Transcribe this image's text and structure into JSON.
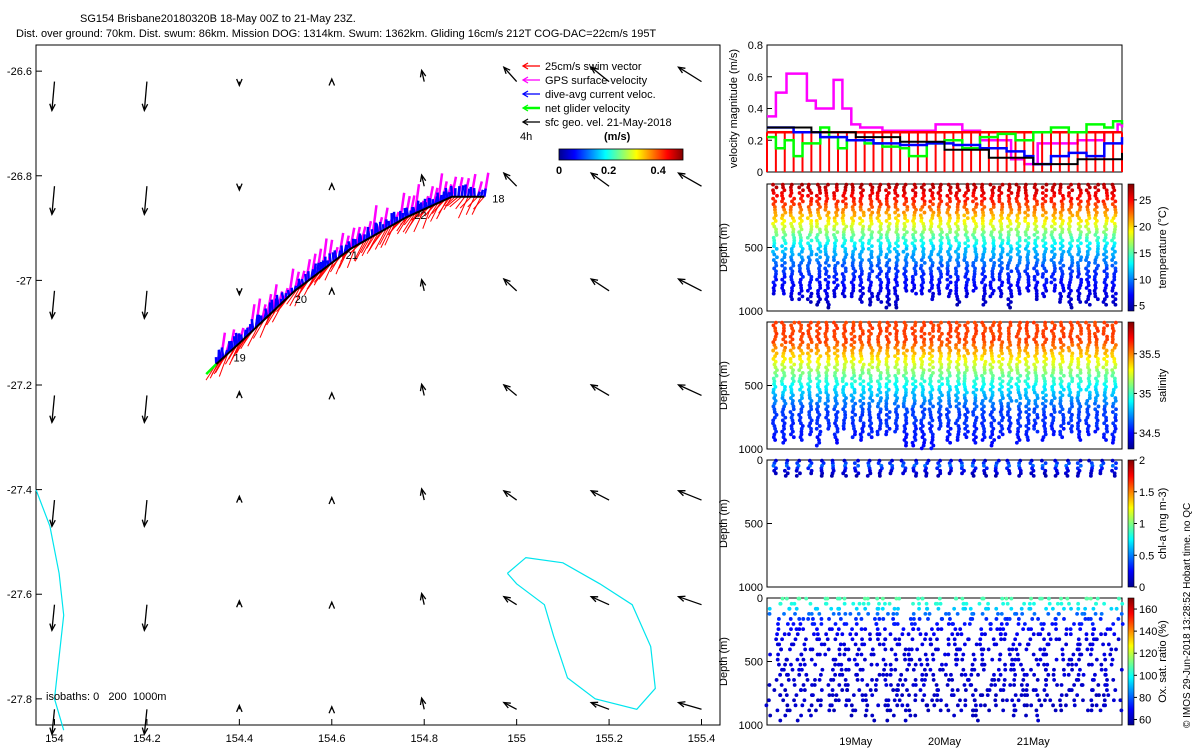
{
  "header": {
    "title": "SG154 Brisbane20180320B 18-May 00Z to 21-May 23Z.",
    "subtitle": "Dist. over ground: 70km. Dist. swum: 86km. Mission DOG: 1314km. Swum: 1362km. Gliding 16cm/s 212T COG-DAC=22cm/s 195T"
  },
  "chart_data": [
    {
      "id": "map",
      "type": "scatter",
      "title": "SG154 Brisbane20180320B 18-May 00Z to 21-May 23Z.",
      "x_ticks": [
        "154",
        "154.2",
        "154.4",
        "154.6",
        "154.8",
        "155",
        "155.2",
        "155.4"
      ],
      "y_ticks": [
        "-26.6",
        "-26.8",
        "-27",
        "-27.2",
        "-27.4",
        "-27.6",
        "-27.8"
      ],
      "xlim": [
        153.96,
        155.44
      ],
      "ylim": [
        -27.85,
        -26.55
      ],
      "legend": [
        {
          "label": "25cm/s swim vector",
          "color": "#ff0000"
        },
        {
          "label": "GPS surface velocity",
          "color": "#ff00ff"
        },
        {
          "label": "dive-avg current veloc.",
          "color": "#0000ff"
        },
        {
          "label": "net glider velocity",
          "color": "#00ff00"
        },
        {
          "label": "sfc geo. vel. 21-May-2018",
          "color": "#000000"
        }
      ],
      "legend_placement": "top-right",
      "colorbar": {
        "label": "(m/s)",
        "ticks": [
          "0",
          "0.2",
          "0.4"
        ],
        "range": [
          0,
          0.5
        ],
        "timestep_label": "4h"
      },
      "isobaths_label": "isobaths: 0   200  1000m",
      "track_labels": [
        "18",
        "19",
        "20",
        "21",
        "22"
      ],
      "track": [
        [
          154.35,
          -27.16
        ],
        [
          154.4,
          -27.12
        ],
        [
          154.46,
          -27.07
        ],
        [
          154.52,
          -27.02
        ],
        [
          154.58,
          -26.98
        ],
        [
          154.64,
          -26.94
        ],
        [
          154.7,
          -26.91
        ],
        [
          154.76,
          -26.88
        ],
        [
          154.81,
          -26.86
        ],
        [
          154.86,
          -26.84
        ],
        [
          154.93,
          -26.84
        ]
      ],
      "isobath_west": [
        [
          153.96,
          -27.4
        ],
        [
          153.99,
          -27.47
        ],
        [
          154.01,
          -27.56
        ],
        [
          154.02,
          -27.64
        ],
        [
          154.01,
          -27.72
        ],
        [
          154.0,
          -27.8
        ],
        [
          154.02,
          -27.86
        ]
      ],
      "isobath_east": [
        [
          154.98,
          -27.56
        ],
        [
          155.02,
          -27.53
        ],
        [
          155.1,
          -27.54
        ],
        [
          155.18,
          -27.58
        ],
        [
          155.25,
          -27.62
        ],
        [
          155.29,
          -27.7
        ],
        [
          155.3,
          -27.78
        ],
        [
          155.26,
          -27.82
        ],
        [
          155.17,
          -27.8
        ],
        [
          155.11,
          -27.76
        ],
        [
          155.08,
          -27.68
        ],
        [
          155.06,
          -27.62
        ],
        [
          155.0,
          -27.58
        ],
        [
          154.98,
          -27.56
        ]
      ]
    },
    {
      "id": "velocity",
      "type": "line",
      "ylabel": "velocity magnitude (m/s)",
      "ylim": [
        0,
        0.8
      ],
      "y_ticks": [
        "0",
        "0.2",
        "0.4",
        "0.6",
        "0.8"
      ],
      "time_range": [
        18.0,
        22.0
      ],
      "series": [
        {
          "color": "#ff00ff",
          "x": [
            18.0,
            18.1,
            18.22,
            18.35,
            18.45,
            18.55,
            18.65,
            18.75,
            18.85,
            18.95,
            19.05,
            19.3,
            19.8,
            19.9,
            20.2,
            20.4,
            20.6,
            20.75,
            20.9,
            21.05,
            21.5,
            21.8,
            21.95,
            22.0
          ],
          "y": [
            0.35,
            0.5,
            0.62,
            0.62,
            0.45,
            0.4,
            0.4,
            0.58,
            0.4,
            0.3,
            0.28,
            0.26,
            0.26,
            0.3,
            0.26,
            0.2,
            0.2,
            0.08,
            0.05,
            0.18,
            0.2,
            0.25,
            0.3,
            0.28
          ]
        },
        {
          "color": "#ff0000",
          "x": [
            18.0,
            18.1,
            18.2,
            18.3,
            18.4,
            18.5,
            18.6,
            18.7,
            18.8,
            18.9,
            19.0,
            19.1,
            19.2,
            19.3,
            19.4,
            19.5,
            19.6,
            19.7,
            19.8,
            19.9,
            20.0,
            20.1,
            20.2,
            20.3,
            20.4,
            20.5,
            20.6,
            20.7,
            20.8,
            20.9,
            21.0,
            21.1,
            21.2,
            21.3,
            21.4,
            21.5,
            21.6,
            21.7,
            21.8,
            21.9,
            22.0
          ],
          "y": [
            0.25,
            0.25,
            0.25,
            0.25,
            0.25,
            0.25,
            0.25,
            0.25,
            0.25,
            0.25,
            0.25,
            0.25,
            0.25,
            0.25,
            0.25,
            0.25,
            0.25,
            0.25,
            0.25,
            0.25,
            0.25,
            0.25,
            0.25,
            0.25,
            0.25,
            0.25,
            0.25,
            0.25,
            0.25,
            0.25,
            0.25,
            0.25,
            0.25,
            0.25,
            0.25,
            0.25,
            0.25,
            0.25,
            0.25,
            0.25,
            0.25
          ]
        },
        {
          "color": "#00ff00",
          "x": [
            18.0,
            18.1,
            18.2,
            18.3,
            18.4,
            18.6,
            18.7,
            18.8,
            18.9,
            19.1,
            19.3,
            19.5,
            19.6,
            19.8,
            20.0,
            20.2,
            20.4,
            20.6,
            20.8,
            21.0,
            21.2,
            21.4,
            21.6,
            21.8,
            21.9,
            22.0
          ],
          "y": [
            0.22,
            0.15,
            0.2,
            0.1,
            0.18,
            0.28,
            0.22,
            0.15,
            0.2,
            0.18,
            0.16,
            0.15,
            0.1,
            0.18,
            0.2,
            0.15,
            0.22,
            0.24,
            0.2,
            0.25,
            0.28,
            0.25,
            0.3,
            0.28,
            0.32,
            0.3
          ]
        },
        {
          "color": "#0000ff",
          "x": [
            18.0,
            18.3,
            18.6,
            18.9,
            19.2,
            19.5,
            19.8,
            20.1,
            20.4,
            20.7,
            20.9,
            21.0,
            21.2,
            21.4,
            21.6,
            21.8,
            22.0
          ],
          "y": [
            0.28,
            0.25,
            0.22,
            0.2,
            0.18,
            0.17,
            0.18,
            0.17,
            0.15,
            0.13,
            0.1,
            0.05,
            0.1,
            0.12,
            0.1,
            0.18,
            0.22
          ]
        },
        {
          "color": "#000000",
          "x": [
            18.0,
            18.5,
            19.0,
            19.5,
            20.0,
            20.5,
            21.0,
            21.5,
            22.0
          ],
          "y": [
            0.28,
            0.25,
            0.22,
            0.19,
            0.14,
            0.09,
            0.05,
            0.08,
            0.12
          ]
        }
      ]
    },
    {
      "id": "temperature",
      "type": "scatter",
      "ylabel": "Depth (m)",
      "ylim": [
        1000,
        0
      ],
      "y_ticks": [
        "500",
        "1000"
      ],
      "colorbar": {
        "label": "temperature (°C)",
        "ticks": [
          "5",
          "10",
          "15",
          "20",
          "25"
        ],
        "range": [
          4,
          28
        ]
      },
      "value_profile": [
        [
          0,
          27
        ],
        [
          150,
          24
        ],
        [
          300,
          19
        ],
        [
          500,
          12
        ],
        [
          700,
          8
        ],
        [
          1000,
          5
        ]
      ],
      "dive_count": 40,
      "max_depth": 1000
    },
    {
      "id": "salinity",
      "type": "scatter",
      "ylabel": "Depth (m)",
      "ylim": [
        1000,
        0
      ],
      "y_ticks": [
        "500",
        "1000"
      ],
      "colorbar": {
        "label": "salinity",
        "ticks": [
          "34.5",
          "35",
          "35.5"
        ],
        "range": [
          34.3,
          35.9
        ],
        "range_min": "34.3"
      },
      "value_profile": [
        [
          0,
          35.6
        ],
        [
          150,
          35.6
        ],
        [
          300,
          35.3
        ],
        [
          500,
          34.9
        ],
        [
          700,
          34.6
        ],
        [
          1000,
          34.5
        ]
      ],
      "dive_count": 40,
      "max_depth": 1000
    },
    {
      "id": "chla",
      "type": "scatter",
      "ylabel": "Depth (m)",
      "ylim": [
        1000,
        0
      ],
      "y_ticks": [
        "0",
        "500",
        "1000"
      ],
      "colorbar": {
        "label": "chl-a (mg m-3)",
        "ticks": [
          "0",
          "0.5",
          "1",
          "1.5",
          "2"
        ],
        "range": [
          0,
          2
        ]
      },
      "value_profile": [
        [
          0,
          0.1
        ],
        [
          40,
          0.5
        ],
        [
          80,
          0.2
        ],
        [
          150,
          0.05
        ]
      ],
      "dive_count": 30,
      "max_depth": 140
    },
    {
      "id": "oxygen",
      "type": "scatter",
      "ylabel": "Depth (m)",
      "ylim": [
        1000,
        0
      ],
      "y_ticks": [
        "0",
        "500",
        "1000"
      ],
      "x_ticks": [
        "19May",
        "20May",
        "21May"
      ],
      "colorbar": {
        "label": "Ox. sat. ratio (%)",
        "ticks": [
          "60",
          "80",
          "100",
          "120",
          "140",
          "160"
        ],
        "range": [
          55,
          170
        ]
      },
      "value_profile": [
        [
          0,
          108
        ],
        [
          60,
          100
        ],
        [
          150,
          75
        ],
        [
          300,
          66
        ],
        [
          1000,
          62
        ]
      ],
      "dive_count": 40,
      "max_depth": 1000
    }
  ],
  "footer": {
    "timestamp_label": "© IMOS 29-Jun-2018 13:28:52 Hobart time. no QC"
  }
}
